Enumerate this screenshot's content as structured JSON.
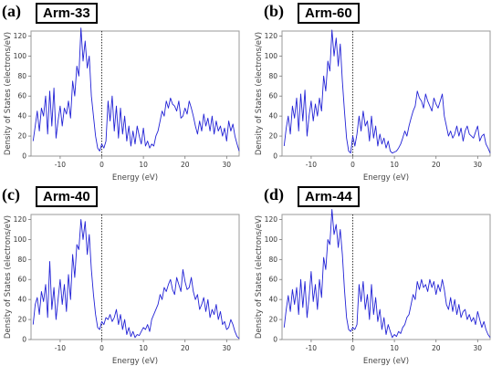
{
  "panels": [
    {
      "panel_label": "(a)",
      "box_label": "Arm-33"
    },
    {
      "panel_label": "(b)",
      "box_label": "Arm-60"
    },
    {
      "panel_label": "(c)",
      "box_label": "Arm-40"
    },
    {
      "panel_label": "(d)",
      "box_label": "Arm-44"
    }
  ],
  "chart_data": [
    {
      "type": "line",
      "color": "#2323d6",
      "fermi_line": "dotted vertical at x=0",
      "xlabel": "Energy (eV)",
      "ylabel": "Density of States (electrons/eV)",
      "xlim": [
        -17,
        33
      ],
      "ylim": [
        0,
        125
      ],
      "x_ticks": [
        "-10",
        "0",
        "10",
        "20",
        "30"
      ],
      "y_ticks": [
        "0",
        "20",
        "40",
        "60",
        "80",
        "100",
        "120"
      ],
      "series": [
        {
          "x": [
            -16.5,
            -16,
            -15.5,
            -15,
            -14.5,
            -14,
            -13.5,
            -13,
            -12.5,
            -12,
            -11.5,
            -11,
            -10.5,
            -10,
            -9.5,
            -9,
            -8.5,
            -8,
            -7.5,
            -7,
            -6.5,
            -6,
            -5.5,
            -5,
            -4.5,
            -4,
            -3.5,
            -3,
            -2.5,
            -2,
            -1.5,
            -1,
            -0.5,
            0,
            0.5,
            1,
            1.5,
            2,
            2.5,
            3,
            3.5,
            4,
            4.5,
            5,
            5.5,
            6,
            6.5,
            7,
            7.5,
            8,
            8.5,
            9,
            9.5,
            10,
            10.5,
            11,
            11.5,
            12,
            12.5,
            13,
            13.5,
            14,
            14.5,
            15,
            15.5,
            16,
            16.5,
            17,
            17.5,
            18,
            18.5,
            19,
            19.5,
            20,
            20.5,
            21,
            21.5,
            22,
            22.5,
            23,
            23.5,
            24,
            24.5,
            25,
            25.5,
            26,
            26.5,
            27,
            27.5,
            28,
            28.5,
            29,
            29.5,
            30,
            30.5,
            31,
            31.5,
            32,
            32.5,
            33
          ],
          "y": [
            15,
            30,
            45,
            25,
            48,
            40,
            60,
            22,
            65,
            30,
            68,
            18,
            35,
            50,
            30,
            48,
            42,
            55,
            38,
            75,
            60,
            90,
            80,
            128,
            95,
            115,
            88,
            100,
            60,
            40,
            20,
            8,
            5,
            12,
            8,
            15,
            55,
            35,
            60,
            25,
            50,
            18,
            48,
            22,
            40,
            15,
            30,
            10,
            25,
            12,
            30,
            20,
            12,
            28,
            10,
            15,
            8,
            12,
            10,
            20,
            25,
            35,
            45,
            40,
            55,
            48,
            58,
            52,
            50,
            45,
            55,
            38,
            40,
            48,
            42,
            55,
            48,
            40,
            30,
            22,
            35,
            25,
            42,
            30,
            38,
            25,
            40,
            22,
            35,
            25,
            30,
            20,
            28,
            15,
            35,
            25,
            32,
            20,
            12,
            5
          ]
        }
      ]
    },
    {
      "type": "line",
      "color": "#2323d6",
      "fermi_line": "dotted vertical at x=0",
      "xlabel": "Energy (eV)",
      "ylabel": "Density of States (electrons/eV)",
      "xlim": [
        -17,
        33
      ],
      "ylim": [
        0,
        125
      ],
      "x_ticks": [
        "-10",
        "0",
        "10",
        "20",
        "30"
      ],
      "y_ticks": [
        "0",
        "20",
        "40",
        "60",
        "80",
        "100",
        "120"
      ],
      "series": [
        {
          "x": [
            -16.5,
            -16,
            -15.5,
            -15,
            -14.5,
            -14,
            -13.5,
            -13,
            -12.5,
            -12,
            -11.5,
            -11,
            -10.5,
            -10,
            -9.5,
            -9,
            -8.5,
            -8,
            -7.5,
            -7,
            -6.5,
            -6,
            -5.5,
            -5,
            -4.5,
            -4,
            -3.5,
            -3,
            -2.5,
            -2,
            -1.5,
            -1,
            -0.5,
            0,
            0.5,
            1,
            1.5,
            2,
            2.5,
            3,
            3.5,
            4,
            4.5,
            5,
            5.5,
            6,
            6.5,
            7,
            7.5,
            8,
            8.5,
            9,
            9.5,
            10,
            10.5,
            11,
            11.5,
            12,
            12.5,
            13,
            13.5,
            14,
            14.5,
            15,
            15.5,
            16,
            16.5,
            17,
            17.5,
            18,
            18.5,
            19,
            19.5,
            20,
            20.5,
            21,
            21.5,
            22,
            22.5,
            23,
            23.5,
            24,
            24.5,
            25,
            25.5,
            26,
            26.5,
            27,
            27.5,
            28,
            28.5,
            29,
            29.5,
            30,
            30.5,
            31,
            31.5,
            32,
            32.5,
            33
          ],
          "y": [
            10,
            28,
            40,
            22,
            50,
            38,
            58,
            25,
            62,
            35,
            66,
            20,
            40,
            55,
            35,
            52,
            40,
            58,
            45,
            80,
            65,
            95,
            85,
            126,
            100,
            118,
            90,
            112,
            75,
            45,
            18,
            5,
            3,
            20,
            10,
            22,
            40,
            25,
            45,
            30,
            35,
            15,
            40,
            18,
            30,
            10,
            22,
            12,
            18,
            8,
            15,
            5,
            3,
            4,
            5,
            8,
            12,
            18,
            25,
            20,
            30,
            38,
            45,
            50,
            65,
            58,
            55,
            48,
            62,
            55,
            50,
            45,
            58,
            52,
            48,
            55,
            62,
            40,
            30,
            20,
            25,
            18,
            22,
            30,
            20,
            28,
            15,
            25,
            30,
            22,
            20,
            18,
            24,
            30,
            15,
            20,
            22,
            12,
            8,
            3
          ]
        }
      ]
    },
    {
      "type": "line",
      "color": "#2323d6",
      "fermi_line": "dotted vertical at x=0",
      "xlabel": "Energy (eV)",
      "ylabel": "Density of States (electrons/eV)",
      "xlim": [
        -17,
        33
      ],
      "ylim": [
        0,
        125
      ],
      "x_ticks": [
        "-10",
        "0",
        "10",
        "20",
        "30"
      ],
      "y_ticks": [
        "0",
        "20",
        "40",
        "60",
        "80",
        "100",
        "120"
      ],
      "series": [
        {
          "x": [
            -16.5,
            -16,
            -15.5,
            -15,
            -14.5,
            -14,
            -13.5,
            -13,
            -12.5,
            -12,
            -11.5,
            -11,
            -10.5,
            -10,
            -9.5,
            -9,
            -8.5,
            -8,
            -7.5,
            -7,
            -6.5,
            -6,
            -5.5,
            -5,
            -4.5,
            -4,
            -3.5,
            -3,
            -2.5,
            -2,
            -1.5,
            -1,
            -0.5,
            0,
            0.5,
            1,
            1.5,
            2,
            2.5,
            3,
            3.5,
            4,
            4.5,
            5,
            5.5,
            6,
            6.5,
            7,
            7.5,
            8,
            8.5,
            9,
            9.5,
            10,
            10.5,
            11,
            11.5,
            12,
            12.5,
            13,
            13.5,
            14,
            14.5,
            15,
            15.5,
            16,
            16.5,
            17,
            17.5,
            18,
            18.5,
            19,
            19.5,
            20,
            20.5,
            21,
            21.5,
            22,
            22.5,
            23,
            23.5,
            24,
            24.5,
            25,
            25.5,
            26,
            26.5,
            27,
            27.5,
            28,
            28.5,
            29,
            29.5,
            30,
            30.5,
            31,
            31.5,
            32,
            32.5,
            33
          ],
          "y": [
            15,
            35,
            42,
            25,
            48,
            38,
            55,
            22,
            78,
            30,
            52,
            20,
            40,
            60,
            35,
            55,
            28,
            65,
            40,
            85,
            62,
            95,
            90,
            120,
            100,
            118,
            85,
            105,
            70,
            45,
            25,
            12,
            10,
            18,
            15,
            22,
            20,
            25,
            18,
            22,
            30,
            15,
            25,
            10,
            20,
            5,
            12,
            3,
            8,
            2,
            5,
            4,
            8,
            12,
            10,
            15,
            8,
            20,
            25,
            30,
            35,
            45,
            40,
            52,
            48,
            55,
            60,
            50,
            45,
            62,
            55,
            48,
            70,
            58,
            50,
            52,
            62,
            48,
            40,
            45,
            30,
            35,
            42,
            28,
            40,
            22,
            30,
            25,
            35,
            20,
            28,
            15,
            18,
            10,
            12,
            20,
            15,
            8,
            3,
            1
          ]
        }
      ]
    },
    {
      "type": "line",
      "color": "#2323d6",
      "fermi_line": "dotted vertical at x=0",
      "xlabel": "Energy (eV)",
      "ylabel": "Density of States (electrons/eV)",
      "xlim": [
        -17,
        33
      ],
      "ylim": [
        0,
        125
      ],
      "x_ticks": [
        "-10",
        "0",
        "10",
        "20",
        "30"
      ],
      "y_ticks": [
        "0",
        "20",
        "40",
        "60",
        "80",
        "100",
        "120"
      ],
      "series": [
        {
          "x": [
            -16.5,
            -16,
            -15.5,
            -15,
            -14.5,
            -14,
            -13.5,
            -13,
            -12.5,
            -12,
            -11.5,
            -11,
            -10.5,
            -10,
            -9.5,
            -9,
            -8.5,
            -8,
            -7.5,
            -7,
            -6.5,
            -6,
            -5.5,
            -5,
            -4.5,
            -4,
            -3.5,
            -3,
            -2.5,
            -2,
            -1.5,
            -1,
            -0.5,
            0,
            0.5,
            1,
            1.5,
            2,
            2.5,
            3,
            3.5,
            4,
            4.5,
            5,
            5.5,
            6,
            6.5,
            7,
            7.5,
            8,
            8.5,
            9,
            9.5,
            10,
            10.5,
            11,
            11.5,
            12,
            12.5,
            13,
            13.5,
            14,
            14.5,
            15,
            15.5,
            16,
            16.5,
            17,
            17.5,
            18,
            18.5,
            19,
            19.5,
            20,
            20.5,
            21,
            21.5,
            22,
            22.5,
            23,
            23.5,
            24,
            24.5,
            25,
            25.5,
            26,
            26.5,
            27,
            27.5,
            28,
            28.5,
            29,
            29.5,
            30,
            30.5,
            31,
            31.5,
            32,
            32.5,
            33
          ],
          "y": [
            12,
            30,
            44,
            28,
            50,
            35,
            52,
            25,
            60,
            32,
            58,
            22,
            42,
            68,
            38,
            55,
            30,
            60,
            42,
            82,
            70,
            100,
            95,
            130,
            105,
            115,
            92,
            110,
            85,
            50,
            22,
            10,
            8,
            12,
            10,
            15,
            55,
            38,
            58,
            30,
            45,
            20,
            55,
            25,
            42,
            18,
            30,
            10,
            22,
            5,
            15,
            8,
            2,
            5,
            3,
            8,
            6,
            12,
            15,
            22,
            25,
            35,
            45,
            40,
            58,
            50,
            60,
            52,
            55,
            48,
            60,
            52,
            58,
            45,
            55,
            48,
            60,
            50,
            35,
            30,
            42,
            28,
            40,
            25,
            35,
            22,
            28,
            30,
            20,
            25,
            18,
            22,
            15,
            28,
            20,
            12,
            18,
            10,
            5,
            2
          ]
        }
      ]
    }
  ]
}
